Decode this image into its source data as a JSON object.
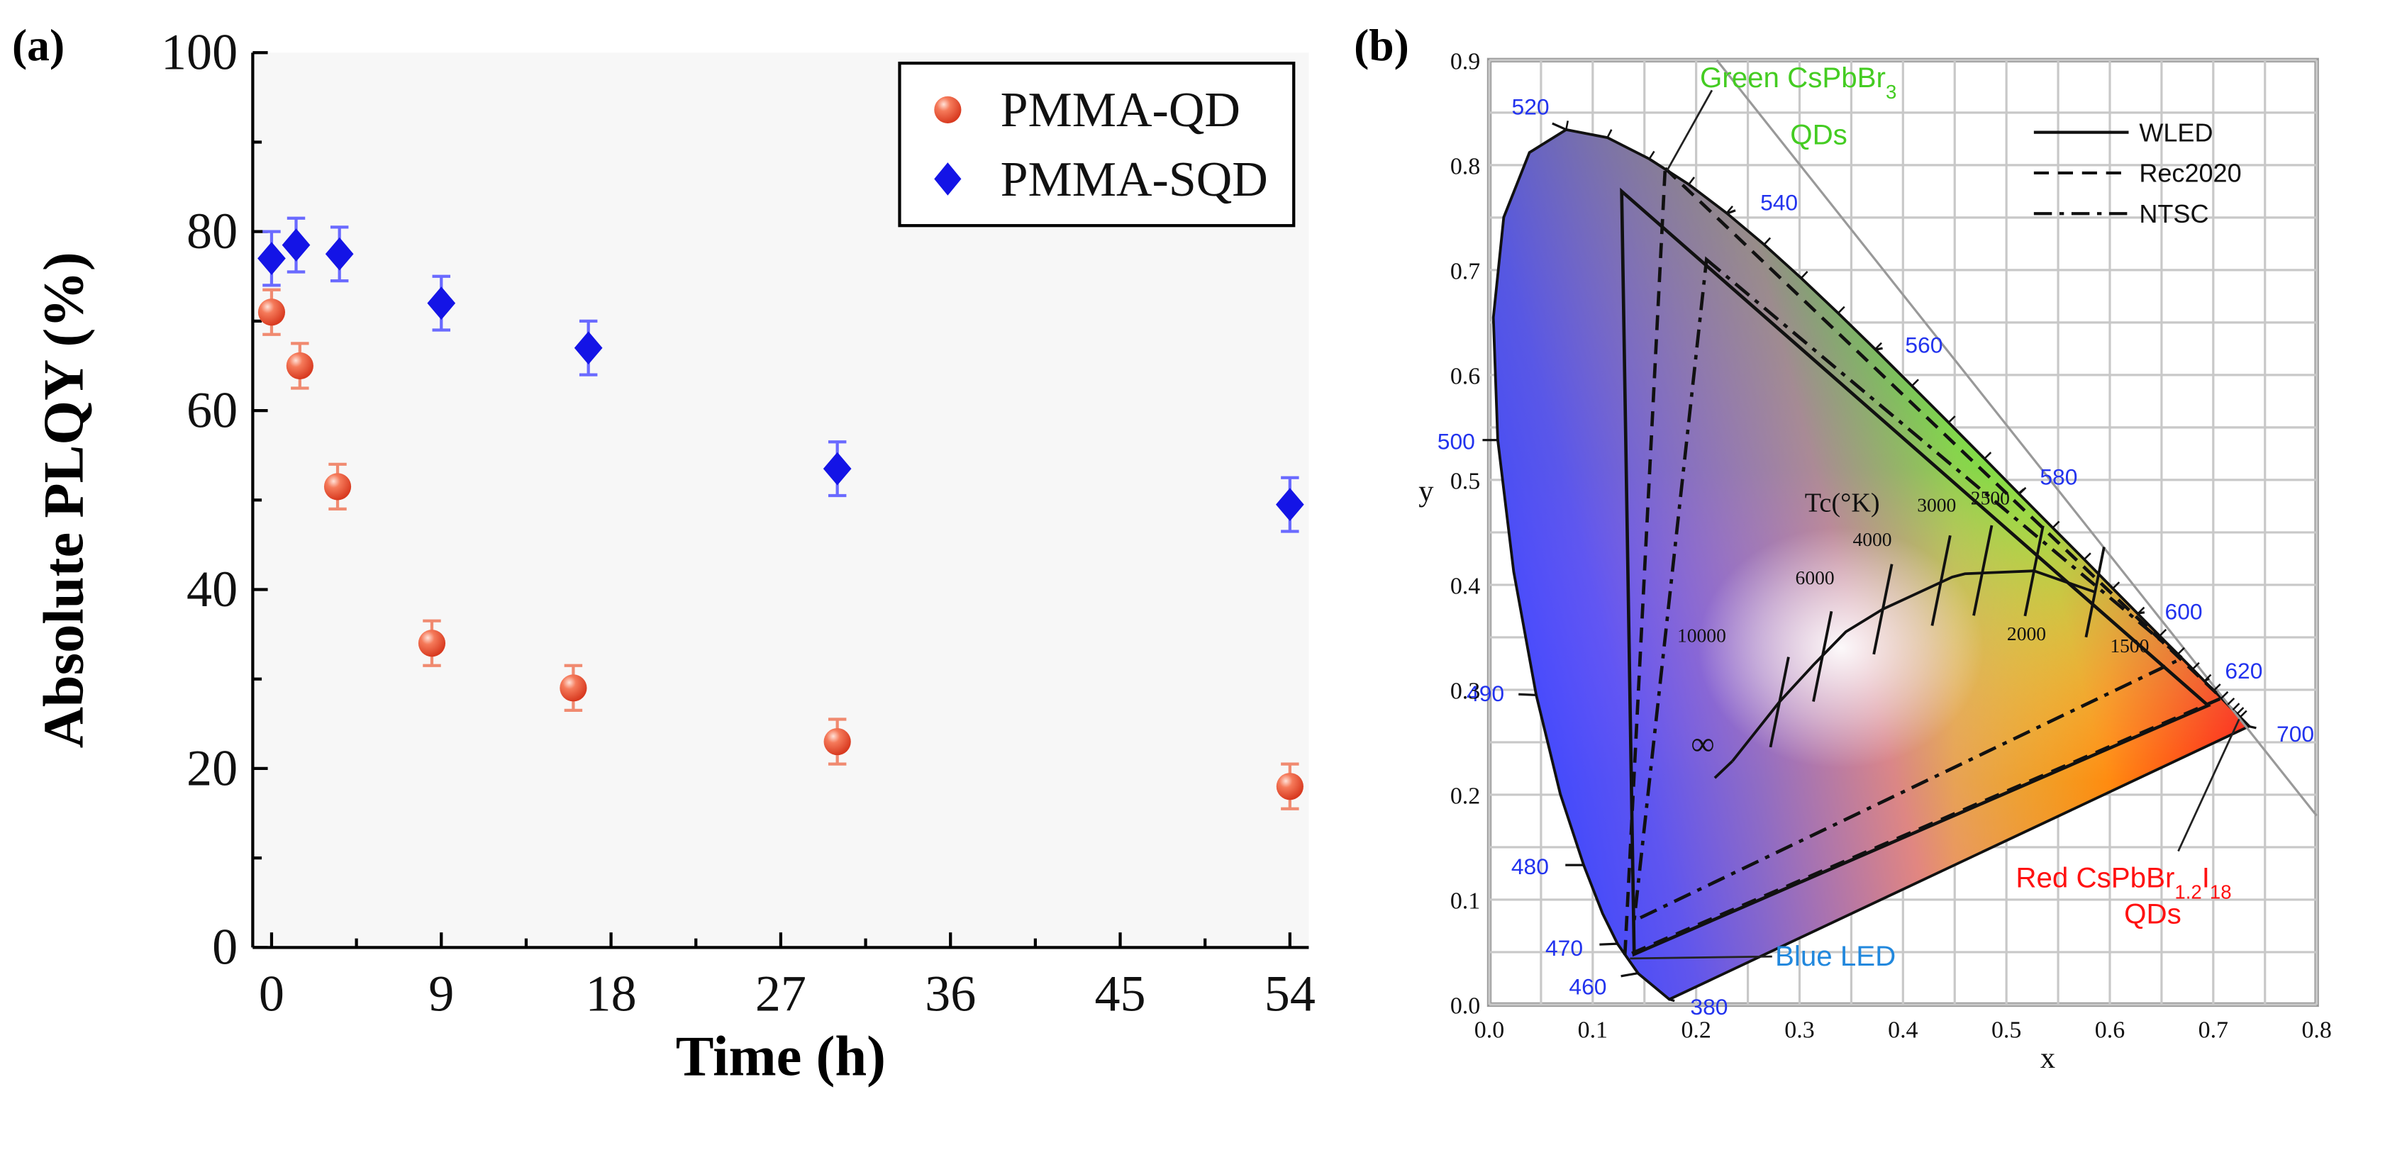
{
  "chart_data": [
    {
      "type": "scatter",
      "panel_label": "(a)",
      "xlabel": "Time (h)",
      "ylabel": "Absolute PLQY (%)",
      "xlim": [
        -1,
        55
      ],
      "ylim": [
        0,
        100
      ],
      "xticks": [
        0,
        9,
        18,
        27,
        36,
        45,
        54
      ],
      "yticks": [
        0,
        20,
        40,
        60,
        80,
        100
      ],
      "xtick_labels": [
        "0",
        "9",
        "18",
        "27",
        "36",
        "45",
        "54"
      ],
      "ytick_labels": [
        "0",
        "20",
        "40",
        "60",
        "80",
        "100"
      ],
      "legend_position": "top-right",
      "series": [
        {
          "name": "PMMA-QD",
          "marker": "circle",
          "color": "#f0573b",
          "x": [
            0,
            1.5,
            3.5,
            8.5,
            16,
            30,
            54
          ],
          "y": [
            71,
            65,
            51.5,
            34,
            29,
            23,
            18
          ],
          "err": [
            2.5,
            2.5,
            2.5,
            2.5,
            2.5,
            2.5,
            2.5
          ]
        },
        {
          "name": "PMMA-SQD",
          "marker": "diamond",
          "color": "#1414e6",
          "x": [
            0,
            1.3,
            3.6,
            9,
            16.8,
            30,
            54
          ],
          "y": [
            77,
            78.5,
            77.5,
            72,
            67,
            53.5,
            49.5
          ],
          "err": [
            3,
            3,
            3,
            3,
            3,
            3,
            3
          ]
        }
      ]
    },
    {
      "type": "line",
      "panel_label": "(b)",
      "xlabel": "x",
      "ylabel": "y",
      "xlim": [
        0,
        0.8
      ],
      "ylim": [
        0,
        0.9
      ],
      "xticks": [
        0,
        0.1,
        0.2,
        0.3,
        0.4,
        0.5,
        0.6,
        0.7,
        0.8
      ],
      "yticks": [
        0,
        0.1,
        0.2,
        0.3,
        0.4,
        0.5,
        0.6,
        0.7,
        0.8,
        0.9
      ],
      "xtick_labels": [
        "0.0",
        "0.1",
        "0.2",
        "0.3",
        "0.4",
        "0.5",
        "0.6",
        "0.7",
        "0.8"
      ],
      "ytick_labels": [
        "0.0",
        "0.1",
        "0.2",
        "0.3",
        "0.4",
        "0.5",
        "0.6",
        "0.7",
        "0.8",
        "0.9"
      ],
      "legend_position": "top-right",
      "legend": [
        {
          "label": "WLED",
          "dash": "solid"
        },
        {
          "label": "Rec2020",
          "dash": "dashed"
        },
        {
          "label": "NTSC",
          "dash": "dashdot"
        }
      ],
      "spectral_locus": [
        [
          0.1741,
          0.005
        ],
        [
          0.144,
          0.0297
        ],
        [
          0.1241,
          0.0578
        ],
        [
          0.1096,
          0.0868
        ],
        [
          0.0913,
          0.1327
        ],
        [
          0.0687,
          0.2007
        ],
        [
          0.0454,
          0.295
        ],
        [
          0.0235,
          0.4127
        ],
        [
          0.0082,
          0.5384
        ],
        [
          0.0039,
          0.6548
        ],
        [
          0.0139,
          0.7502
        ],
        [
          0.0389,
          0.812
        ],
        [
          0.0743,
          0.8338
        ],
        [
          0.1142,
          0.8262
        ],
        [
          0.1547,
          0.8059
        ],
        [
          0.1929,
          0.7816
        ],
        [
          0.2296,
          0.7543
        ],
        [
          0.2658,
          0.7243
        ],
        [
          0.3016,
          0.6923
        ],
        [
          0.3373,
          0.6589
        ],
        [
          0.3731,
          0.6245
        ],
        [
          0.4087,
          0.5896
        ],
        [
          0.4441,
          0.5547
        ],
        [
          0.4788,
          0.5202
        ],
        [
          0.5125,
          0.4866
        ],
        [
          0.5448,
          0.4544
        ],
        [
          0.5752,
          0.4242
        ],
        [
          0.6029,
          0.3965
        ],
        [
          0.627,
          0.3725
        ],
        [
          0.6482,
          0.3514
        ],
        [
          0.6658,
          0.334
        ],
        [
          0.6801,
          0.3197
        ],
        [
          0.6915,
          0.3083
        ],
        [
          0.7006,
          0.2993
        ],
        [
          0.7079,
          0.292
        ],
        [
          0.714,
          0.2859
        ],
        [
          0.719,
          0.2809
        ],
        [
          0.723,
          0.277
        ],
        [
          0.726,
          0.274
        ],
        [
          0.7347,
          0.2653
        ]
      ],
      "wavelength_labels": [
        {
          "nm": "380",
          "x": 0.174,
          "y": 0.005
        },
        {
          "nm": "460",
          "x": 0.144,
          "y": 0.03
        },
        {
          "nm": "470",
          "x": 0.124,
          "y": 0.058
        },
        {
          "nm": "480",
          "x": 0.091,
          "y": 0.133
        },
        {
          "nm": "490",
          "x": 0.045,
          "y": 0.295
        },
        {
          "nm": "500",
          "x": 0.008,
          "y": 0.538
        },
        {
          "nm": "520",
          "x": 0.074,
          "y": 0.834
        },
        {
          "nm": "540",
          "x": 0.23,
          "y": 0.754
        },
        {
          "nm": "560",
          "x": 0.373,
          "y": 0.624
        },
        {
          "nm": "580",
          "x": 0.512,
          "y": 0.487
        },
        {
          "nm": "600",
          "x": 0.627,
          "y": 0.373
        },
        {
          "nm": "620",
          "x": 0.691,
          "y": 0.308
        },
        {
          "nm": "700",
          "x": 0.735,
          "y": 0.265
        }
      ],
      "gamuts": [
        {
          "name": "WLED",
          "dash": "solid",
          "points": [
            [
              0.128,
              0.775
            ],
            [
              0.695,
              0.285
            ],
            [
              0.14,
              0.048
            ]
          ]
        },
        {
          "name": "Rec2020",
          "dash": "dashed",
          "points": [
            [
              0.17,
              0.797
            ],
            [
              0.708,
              0.292
            ],
            [
              0.131,
              0.046
            ]
          ]
        },
        {
          "name": "NTSC",
          "dash": "dashdot",
          "points": [
            [
              0.21,
              0.71
            ],
            [
              0.67,
              0.33
            ],
            [
              0.14,
              0.08
            ]
          ]
        }
      ],
      "planckian_locus": {
        "label": "Tc(°K)",
        "points": [
          [
            0.235,
            0.232
          ],
          [
            0.2805,
            0.2883
          ],
          [
            0.3135,
            0.3237
          ],
          [
            0.3447,
            0.3553
          ],
          [
            0.3804,
            0.3767
          ],
          [
            0.4476,
            0.4074
          ],
          [
            0.4599,
            0.4106
          ],
          [
            0.5267,
            0.4133
          ],
          [
            0.5857,
            0.3931
          ]
        ],
        "isotherms": [
          {
            "label": "10000",
            "x": 0.2806,
            "y": 0.2883
          },
          {
            "label": "6000",
            "x": 0.3221,
            "y": 0.3318
          },
          {
            "label": "4000",
            "x": 0.3805,
            "y": 0.3768
          },
          {
            "label": "3000",
            "x": 0.4369,
            "y": 0.4041
          },
          {
            "label": "2500",
            "x": 0.4771,
            "y": 0.4137
          },
          {
            "label": "2000",
            "x": 0.5267,
            "y": 0.4133
          },
          {
            "label": "1500",
            "x": 0.5857,
            "y": 0.3931
          }
        ],
        "infinity_label": "∞"
      },
      "annotations": [
        {
          "id": "green",
          "text": "Green CsPbBr",
          "subscript": "3",
          "line2": "QDs",
          "color": "#44cc22"
        },
        {
          "id": "red",
          "text_parts": [
            "Red CsPbBr",
            "1.2",
            "I",
            "18"
          ],
          "line2": "QDs",
          "color": "#ff1111"
        },
        {
          "id": "blue",
          "text": "Blue LED",
          "color": "#2288dd"
        }
      ]
    }
  ]
}
